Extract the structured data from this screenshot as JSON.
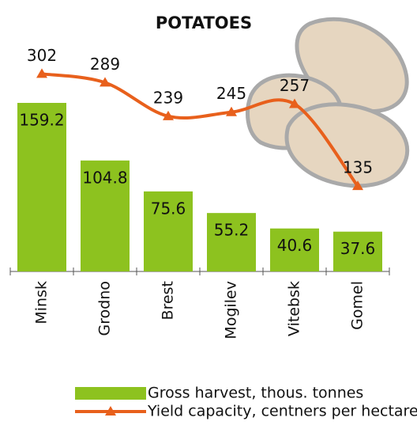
{
  "chart_data": {
    "type": "bar",
    "title": "POTATOES",
    "categories": [
      "Minsk",
      "Grodno",
      "Brest",
      "Mogilev",
      "Vitebsk",
      "Gomel"
    ],
    "series": [
      {
        "name": "Gross harvest, thous. tonnes",
        "type": "bar",
        "color": "#8dc21f",
        "values": [
          159.2,
          104.8,
          75.6,
          55.2,
          40.6,
          37.6
        ]
      },
      {
        "name": "Yield capacity, centners per hectare",
        "type": "line",
        "axis": "y2",
        "color": "#e8601c",
        "values": [
          302,
          289,
          239,
          245,
          257,
          135
        ]
      }
    ],
    "ylim": [
      0,
      219
    ],
    "y2lim": [
      8,
      353
    ]
  }
}
